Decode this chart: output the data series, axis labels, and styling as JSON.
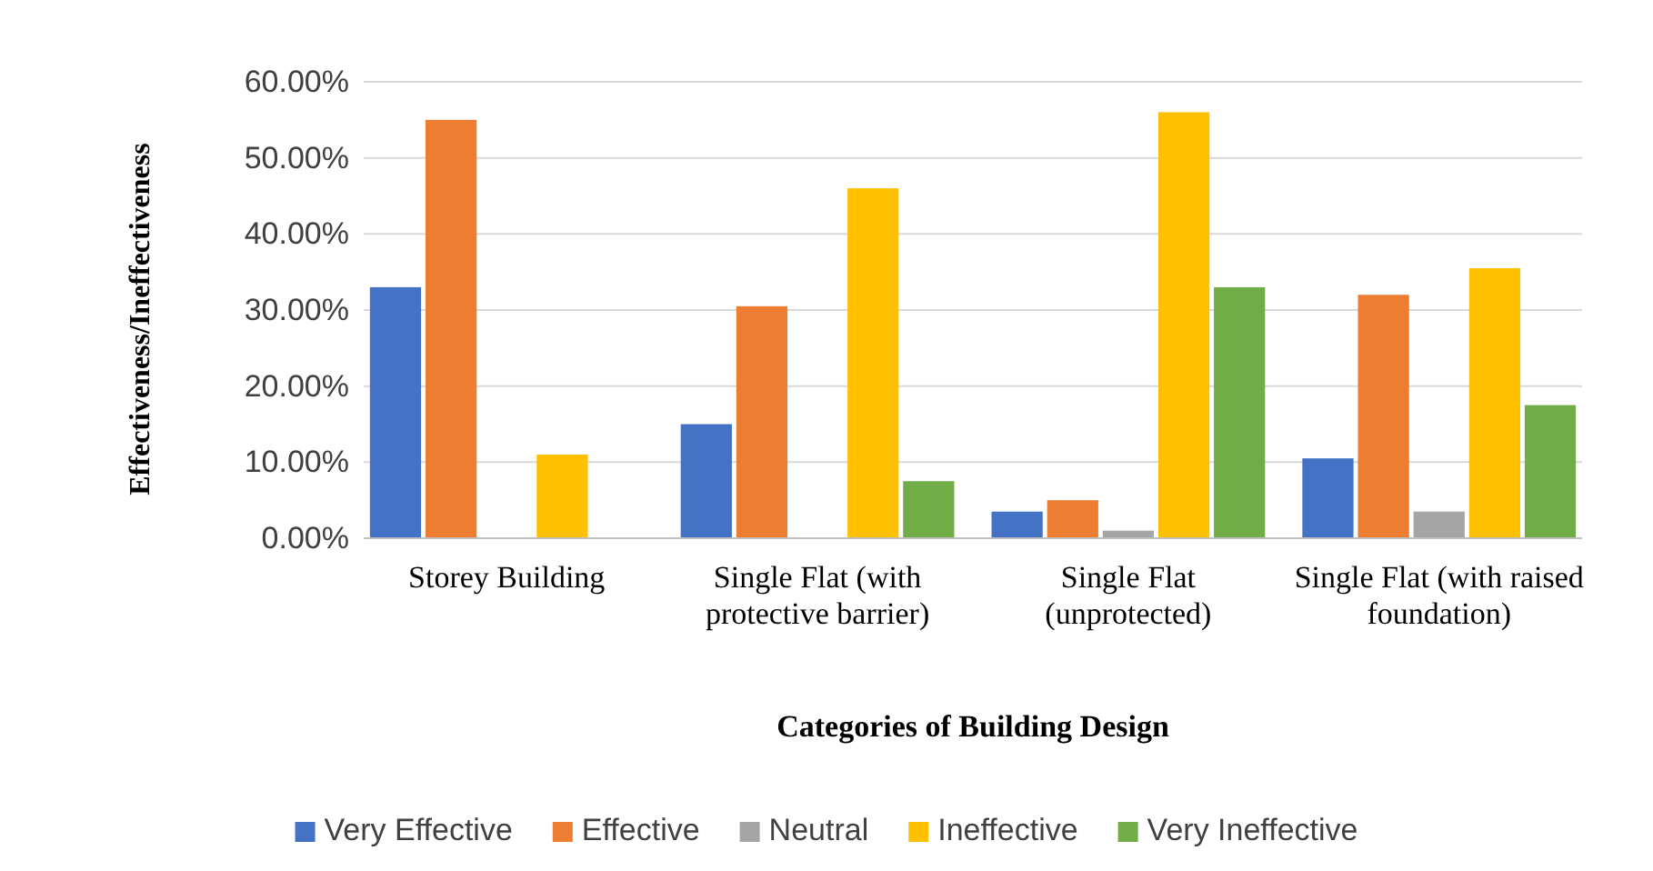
{
  "chart_data": {
    "type": "bar",
    "xlabel": "Categories of Building Design",
    "ylabel": "Effectiveness/Ineffectiveness",
    "categories": [
      "Storey Building",
      "Single Flat (with protective barrier)",
      "Single Flat (unprotected)",
      "Single Flat (with raised foundation)"
    ],
    "series": [
      {
        "name": "Very Effective",
        "color": "#4472c4",
        "values": [
          33,
          15,
          3.5,
          10.5
        ]
      },
      {
        "name": "Effective",
        "color": "#ed7d31",
        "values": [
          55,
          30.5,
          5,
          32
        ]
      },
      {
        "name": "Neutral",
        "color": "#a5a5a5",
        "values": [
          0,
          0,
          1,
          3.5
        ]
      },
      {
        "name": "Ineffective",
        "color": "#ffc000",
        "values": [
          11,
          46,
          56,
          35.5
        ]
      },
      {
        "name": "Very Ineffective",
        "color": "#70ad47",
        "values": [
          0,
          7.5,
          33,
          17.5
        ]
      }
    ],
    "ylim": [
      0,
      60
    ],
    "yticks": [
      {
        "value": 0,
        "label": "0.00%"
      },
      {
        "value": 10,
        "label": "10.00%"
      },
      {
        "value": 20,
        "label": "20.00%"
      },
      {
        "value": 30,
        "label": "30.00%"
      },
      {
        "value": 40,
        "label": "40.00%"
      },
      {
        "value": 50,
        "label": "50.00%"
      },
      {
        "value": 60,
        "label": "60.00%"
      }
    ],
    "grid": "y",
    "legend": "bottom"
  }
}
